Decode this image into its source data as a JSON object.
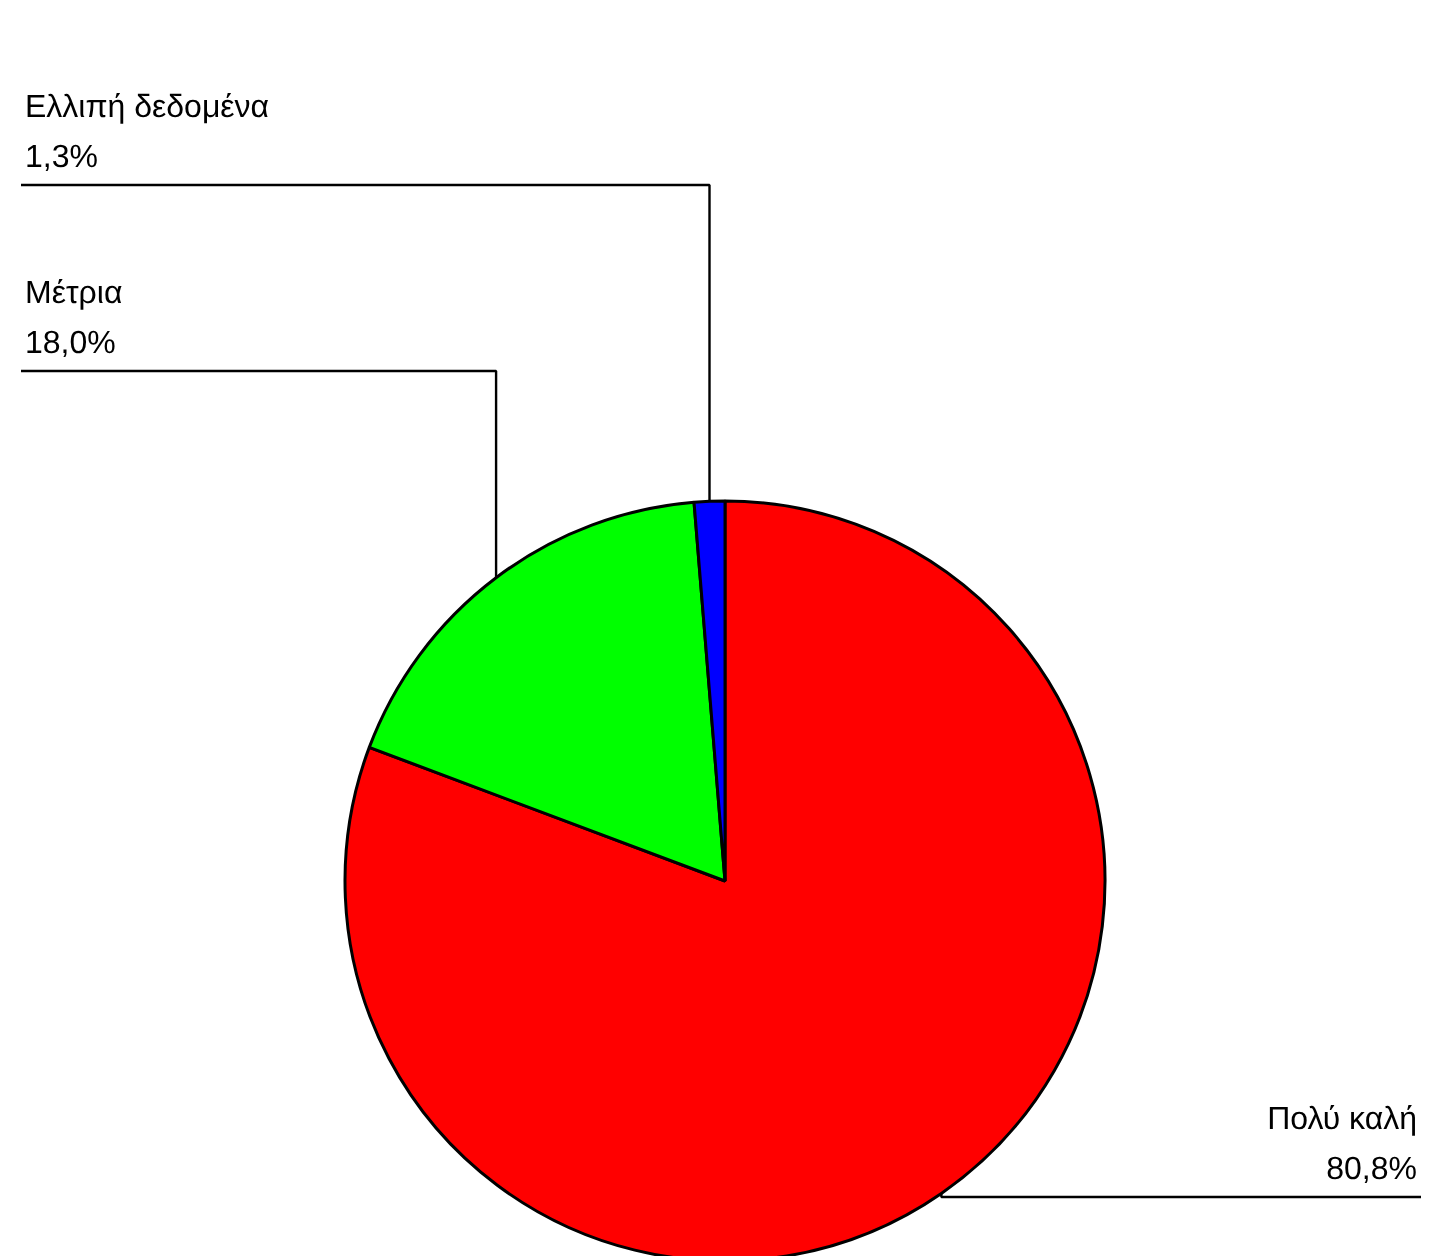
{
  "chart_data": {
    "type": "pie",
    "categories": [
      "Πολύ καλή",
      "Μέτρια",
      "Ελλιπή δεδομένα"
    ],
    "values": [
      80.8,
      18.0,
      1.3
    ],
    "colors": [
      "#ff0000",
      "#00ff00",
      "#0000ff"
    ],
    "value_labels": [
      "80,8%",
      "18,0%",
      "1,3%"
    ]
  }
}
